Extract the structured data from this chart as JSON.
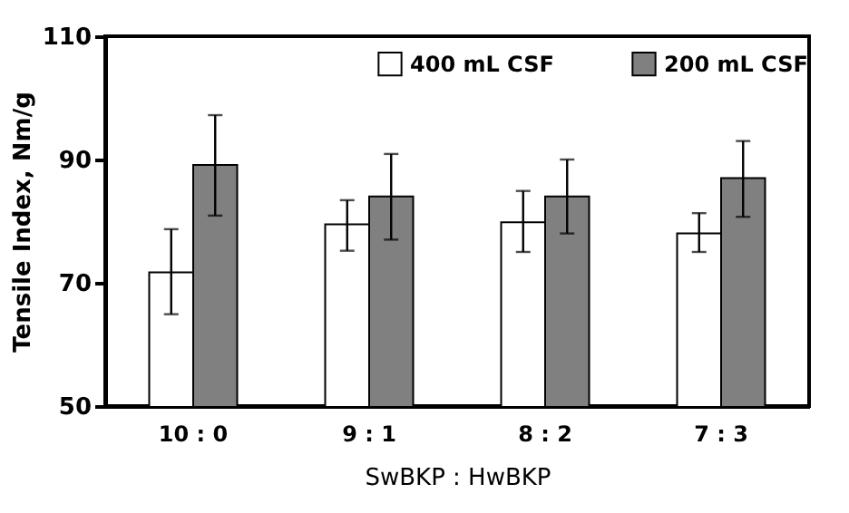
{
  "chart_data": {
    "type": "bar",
    "xlabel": "SwBKP : HwBKP",
    "ylabel": "Tensile Index, Nm/g",
    "categories": [
      "10 : 0",
      "9 : 1",
      "8 : 2",
      "7 : 3"
    ],
    "series": [
      {
        "name": "400 mL CSF",
        "color": "#ffffff",
        "values": [
          71.7,
          79.5,
          79.8,
          78.0
        ],
        "errors": [
          [
            64.9,
            78.7
          ],
          [
            75.2,
            83.4
          ],
          [
            75.0,
            84.9
          ],
          [
            75.0,
            81.3
          ]
        ]
      },
      {
        "name": "200 mL CSF",
        "color": "#808080",
        "values": [
          89.1,
          84.0,
          84.0,
          87.0
        ],
        "errors": [
          [
            80.9,
            97.2
          ],
          [
            77.0,
            90.9
          ],
          [
            78.0,
            90.0
          ],
          [
            80.7,
            93.0
          ]
        ]
      }
    ],
    "ylim": [
      50,
      110
    ],
    "yticks": [
      50,
      70,
      90,
      110
    ],
    "grid": false,
    "legend": "top"
  }
}
